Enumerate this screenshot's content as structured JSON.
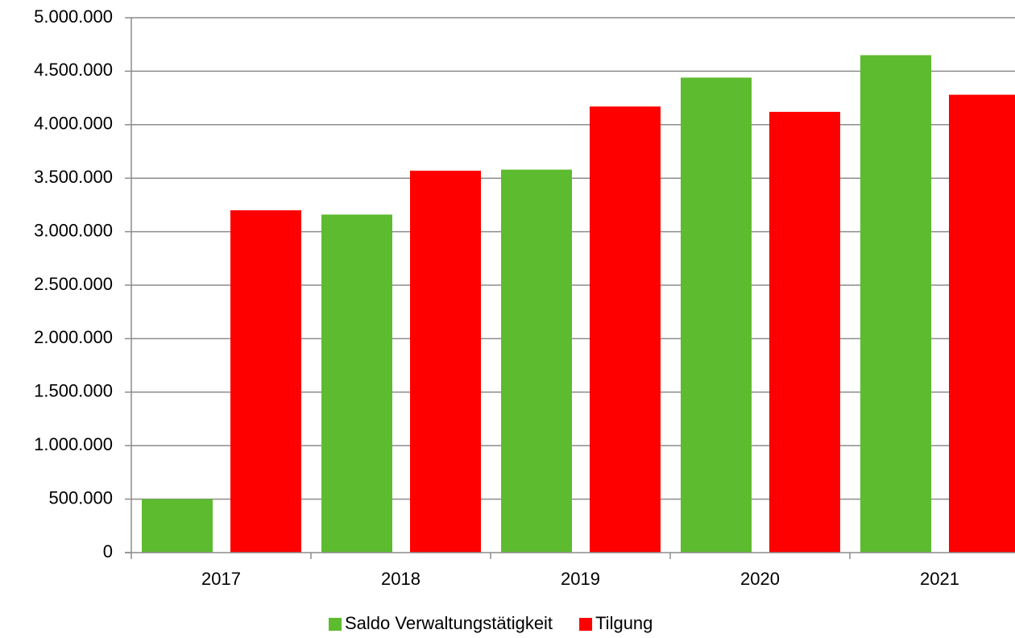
{
  "chart_data": {
    "type": "bar",
    "categories": [
      "2017",
      "2018",
      "2019",
      "2020",
      "2021"
    ],
    "series": [
      {
        "name": "Saldo Verwaltungstätigkeit",
        "color": "#5dbb2f",
        "values": [
          500000,
          3160000,
          3580000,
          4440000,
          4650000
        ]
      },
      {
        "name": "Tilgung",
        "color": "#ff0000",
        "values": [
          3200000,
          3570000,
          4170000,
          4120000,
          4280000
        ]
      }
    ],
    "ylim": [
      0,
      5000000
    ],
    "yticks": [
      0,
      {
        "value": 500000,
        "label": "500.000"
      },
      {
        "value": 1000000,
        "label": "1.000.000"
      },
      {
        "value": 1500000,
        "label": "1.500.000"
      },
      {
        "value": 2000000,
        "label": "2.000.000"
      },
      {
        "value": 2500000,
        "label": "2.500.000"
      },
      {
        "value": 3000000,
        "label": "3.000.000"
      },
      {
        "value": 3500000,
        "label": "3.500.000"
      },
      {
        "value": 4000000,
        "label": "4.000.000"
      },
      {
        "value": 4500000,
        "label": "4.500.000"
      },
      {
        "value": 5000000,
        "label": "5.000.000"
      }
    ],
    "grid": true,
    "legend": "bottom"
  }
}
